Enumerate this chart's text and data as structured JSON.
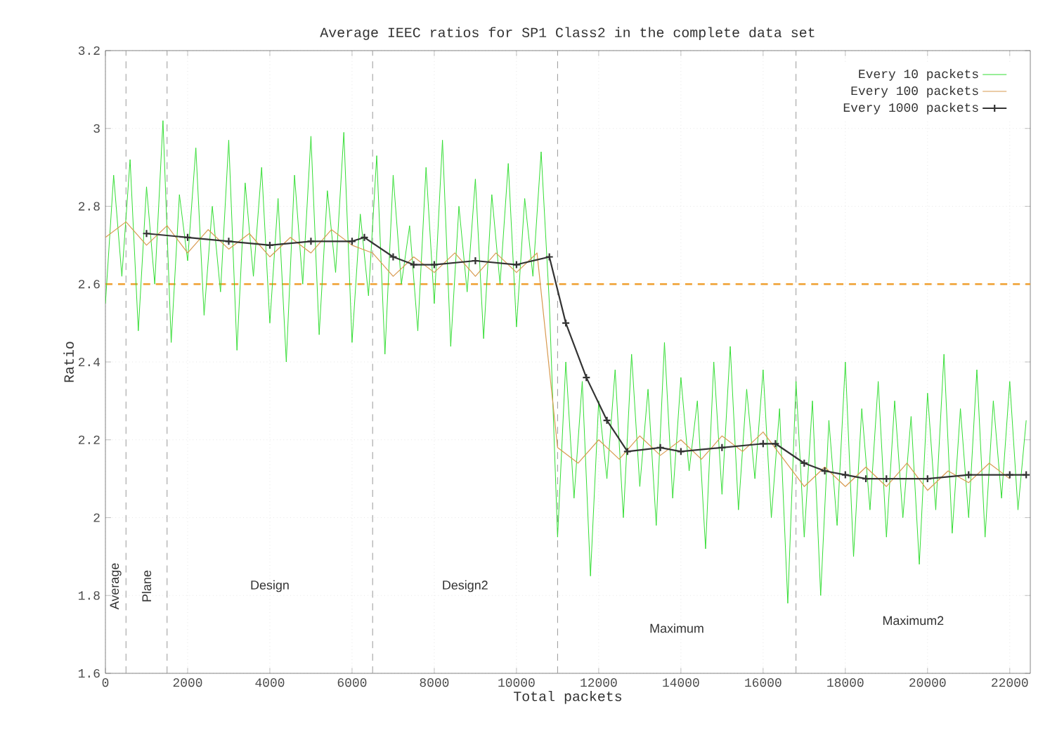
{
  "chart_data": {
    "type": "line",
    "title": "Average IEEC ratios for SP1 Class2 in the complete data set",
    "xlabel": "Total packets",
    "ylabel": "Ratio",
    "xlim": [
      0,
      22500
    ],
    "ylim": [
      1.6,
      3.2
    ],
    "xticks": [
      0,
      2000,
      4000,
      6000,
      8000,
      10000,
      12000,
      14000,
      16000,
      18000,
      20000,
      22000
    ],
    "yticks": [
      1.6,
      1.8,
      2,
      2.2,
      2.4,
      2.6,
      2.8,
      3,
      3.2
    ],
    "grid": true,
    "legend": "top right",
    "series": [
      {
        "name": "Every 10 packets",
        "color": "#33dd33",
        "marker": "none",
        "x": [
          0,
          200,
          400,
          600,
          800,
          1000,
          1200,
          1400,
          1600,
          1800,
          2000,
          2200,
          2400,
          2600,
          2800,
          3000,
          3200,
          3400,
          3600,
          3800,
          4000,
          4200,
          4400,
          4600,
          4800,
          5000,
          5200,
          5400,
          5600,
          5800,
          6000,
          6200,
          6400,
          6600,
          6800,
          7000,
          7200,
          7400,
          7600,
          7800,
          8000,
          8200,
          8400,
          8600,
          8800,
          9000,
          9200,
          9400,
          9600,
          9800,
          10000,
          10200,
          10400,
          10600,
          10800,
          11000,
          11200,
          11400,
          11600,
          11800,
          12000,
          12200,
          12400,
          12600,
          12800,
          13000,
          13200,
          13400,
          13600,
          13800,
          14000,
          14200,
          14400,
          14600,
          14800,
          15000,
          15200,
          15400,
          15600,
          15800,
          16000,
          16200,
          16400,
          16600,
          16800,
          17000,
          17200,
          17400,
          17600,
          17800,
          18000,
          18200,
          18400,
          18600,
          18800,
          19000,
          19200,
          19400,
          19600,
          19800,
          20000,
          20200,
          20400,
          20600,
          20800,
          21000,
          21200,
          21400,
          21600,
          21800,
          22000,
          22200,
          22400
        ],
        "values": [
          2.55,
          2.88,
          2.62,
          2.92,
          2.48,
          2.85,
          2.6,
          3.02,
          2.45,
          2.83,
          2.66,
          2.95,
          2.52,
          2.8,
          2.58,
          2.97,
          2.43,
          2.86,
          2.62,
          2.9,
          2.5,
          2.82,
          2.4,
          2.88,
          2.6,
          2.98,
          2.47,
          2.84,
          2.63,
          2.99,
          2.45,
          2.78,
          2.57,
          2.93,
          2.42,
          2.88,
          2.6,
          2.75,
          2.48,
          2.9,
          2.55,
          2.97,
          2.44,
          2.8,
          2.58,
          2.87,
          2.46,
          2.83,
          2.6,
          2.91,
          2.49,
          2.82,
          2.62,
          2.94,
          2.55,
          1.95,
          2.4,
          2.05,
          2.35,
          1.85,
          2.3,
          2.1,
          2.38,
          2.0,
          2.42,
          2.08,
          2.33,
          1.98,
          2.45,
          2.05,
          2.36,
          2.12,
          2.3,
          1.92,
          2.4,
          2.06,
          2.44,
          2.02,
          2.33,
          2.1,
          2.38,
          2.0,
          2.28,
          1.78,
          2.35,
          1.95,
          2.3,
          1.8,
          2.25,
          1.98,
          2.4,
          1.9,
          2.28,
          2.02,
          2.35,
          1.95,
          2.3,
          2.0,
          2.26,
          1.88,
          2.32,
          2.02,
          2.42,
          1.96,
          2.28,
          2.0,
          2.38,
          1.95,
          2.3,
          2.05,
          2.35,
          2.02,
          2.25
        ]
      },
      {
        "name": "Every 100 packets",
        "color": "#d89a50",
        "marker": "none",
        "x": [
          0,
          500,
          1000,
          1500,
          2000,
          2500,
          3000,
          3500,
          4000,
          4500,
          5000,
          5500,
          6000,
          6500,
          7000,
          7500,
          8000,
          8500,
          9000,
          9500,
          10000,
          10500,
          11000,
          11500,
          12000,
          12500,
          13000,
          13500,
          14000,
          14500,
          15000,
          15500,
          16000,
          16500,
          17000,
          17500,
          18000,
          18500,
          19000,
          19500,
          20000,
          20500,
          21000,
          21500,
          22000
        ],
        "values": [
          2.72,
          2.76,
          2.7,
          2.75,
          2.68,
          2.74,
          2.69,
          2.73,
          2.67,
          2.72,
          2.68,
          2.74,
          2.7,
          2.68,
          2.62,
          2.67,
          2.63,
          2.68,
          2.62,
          2.68,
          2.63,
          2.68,
          2.18,
          2.14,
          2.2,
          2.15,
          2.21,
          2.16,
          2.2,
          2.15,
          2.21,
          2.17,
          2.22,
          2.15,
          2.08,
          2.13,
          2.08,
          2.13,
          2.08,
          2.14,
          2.07,
          2.12,
          2.09,
          2.14,
          2.1
        ]
      },
      {
        "name": "Every 1000 packets",
        "color": "#333333",
        "marker": "cross",
        "x": [
          1000,
          2000,
          3000,
          4000,
          5000,
          6000,
          6300,
          7000,
          7500,
          8000,
          9000,
          10000,
          10800,
          11200,
          11700,
          12200,
          12700,
          13500,
          14000,
          15000,
          16000,
          16300,
          17000,
          17500,
          18000,
          18500,
          19000,
          20000,
          21000,
          22000,
          22400
        ],
        "values": [
          2.73,
          2.72,
          2.71,
          2.7,
          2.71,
          2.71,
          2.72,
          2.67,
          2.65,
          2.65,
          2.66,
          2.65,
          2.67,
          2.5,
          2.36,
          2.25,
          2.17,
          2.18,
          2.17,
          2.18,
          2.19,
          2.19,
          2.14,
          2.12,
          2.11,
          2.1,
          2.1,
          2.1,
          2.11,
          2.11,
          2.11
        ]
      }
    ],
    "ref_lines": [
      {
        "axis": "y",
        "value": 2.6,
        "color": "#f0a030",
        "line_style": "dashed"
      },
      {
        "axis": "x",
        "value": 500,
        "color": "#999999",
        "line_style": "dashed"
      },
      {
        "axis": "x",
        "value": 1500,
        "color": "#999999",
        "line_style": "dashed"
      },
      {
        "axis": "x",
        "value": 6500,
        "color": "#999999",
        "line_style": "dashed"
      },
      {
        "axis": "x",
        "value": 11000,
        "color": "#999999",
        "line_style": "dashed"
      },
      {
        "axis": "x",
        "value": 16800,
        "color": "#999999",
        "line_style": "dashed"
      }
    ],
    "annotations": [
      "Average",
      "Plane",
      "Design",
      "Design2",
      "Maximum",
      "Maximum2"
    ]
  }
}
